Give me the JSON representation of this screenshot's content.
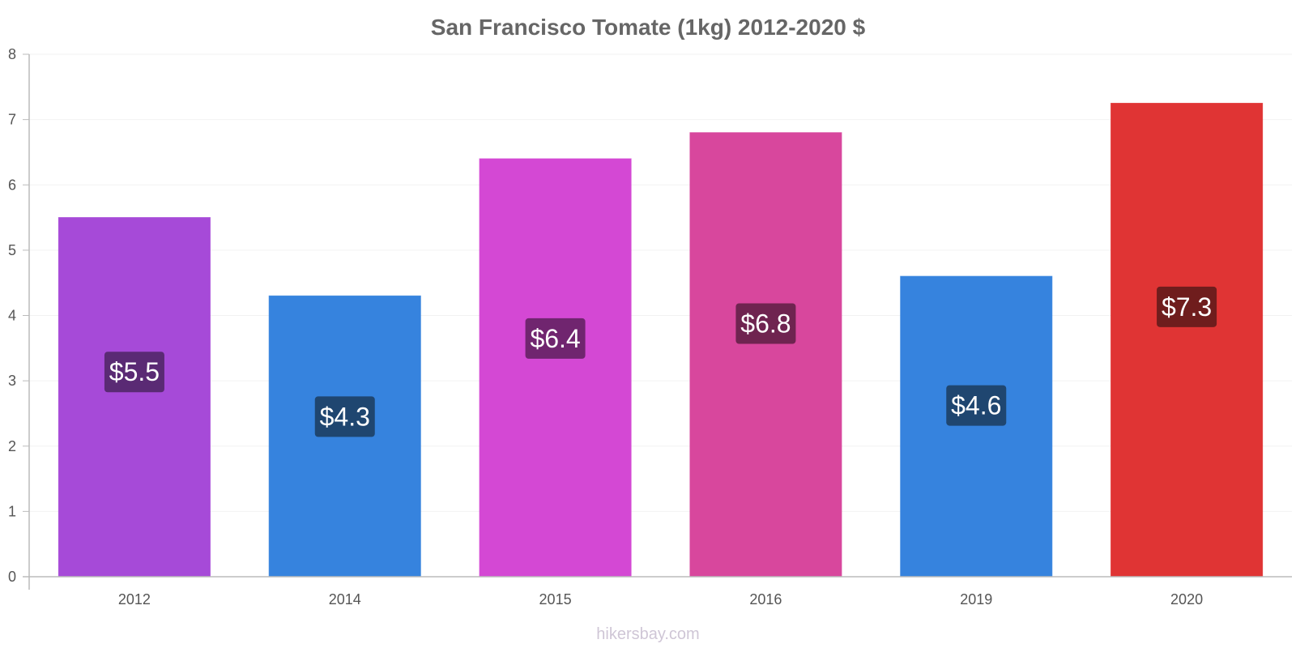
{
  "chart_data": {
    "type": "bar",
    "title": "San Francisco Tomate (1kg) 2012-2020 $",
    "xlabel": "",
    "ylabel": "",
    "categories": [
      "2012",
      "2014",
      "2015",
      "2016",
      "2019",
      "2020"
    ],
    "values": [
      5.5,
      4.3,
      6.4,
      6.8,
      4.6,
      7.25
    ],
    "value_labels": [
      "$5.5",
      "$4.3",
      "$6.4",
      "$6.8",
      "$4.6",
      "$7.3"
    ],
    "bar_colors": [
      "#a64ad8",
      "#3683de",
      "#d448d4",
      "#d8479d",
      "#3683de",
      "#e03434"
    ],
    "label_colors": [
      "#5a2a74",
      "#1f4670",
      "#70256f",
      "#6f2450",
      "#1f4670",
      "#6f1d1d"
    ],
    "ylim": [
      0,
      8
    ],
    "yticks": [
      "0",
      "1",
      "2",
      "3",
      "4",
      "5",
      "6",
      "7",
      "8"
    ],
    "grid": true,
    "legend": "none"
  },
  "watermark": "hikersbay.com"
}
